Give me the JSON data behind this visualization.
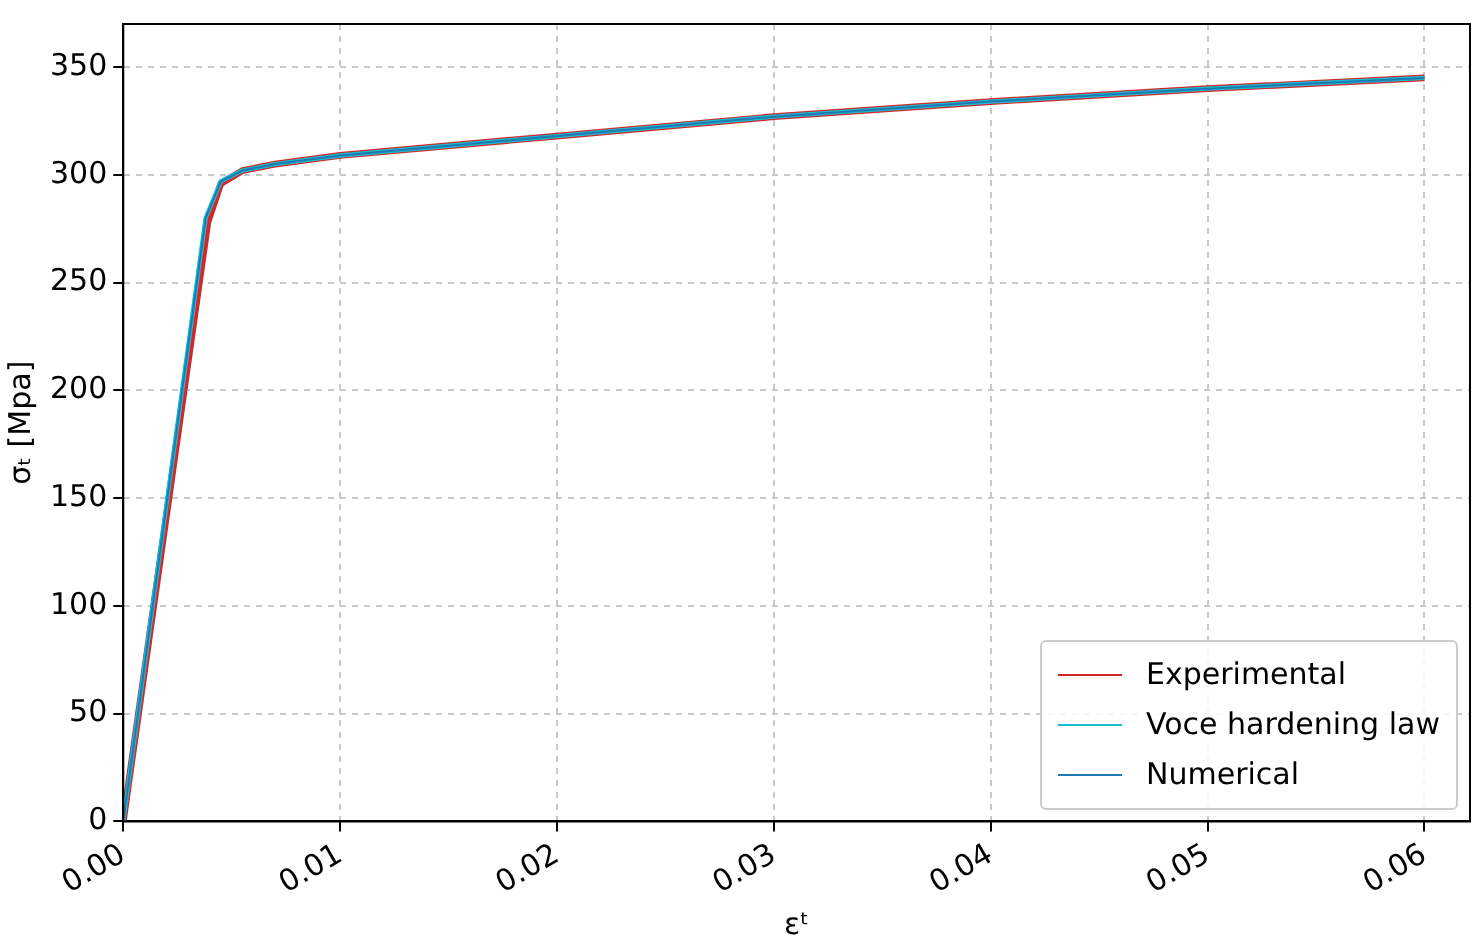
{
  "chart_data": {
    "type": "line",
    "xlabel": "εᵗ",
    "ylabel": "σₜ [Mpa]",
    "xlim": [
      0,
      0.0621
    ],
    "ylim": [
      0,
      370
    ],
    "xticks": [
      {
        "value": 0,
        "label": "0.00"
      },
      {
        "value": 0.01,
        "label": "0.01"
      },
      {
        "value": 0.02,
        "label": "0.02"
      },
      {
        "value": 0.03,
        "label": "0.03"
      },
      {
        "value": 0.04,
        "label": "0.04"
      },
      {
        "value": 0.05,
        "label": "0.05"
      },
      {
        "value": 0.06,
        "label": "0.06"
      }
    ],
    "yticks": [
      0,
      50,
      100,
      150,
      200,
      250,
      300,
      350
    ],
    "grid": true,
    "legend": "bottom right",
    "marker": "none",
    "line_style": "solid",
    "series": [
      {
        "name": "Experimental",
        "color": "#d62728",
        "x": [
          0,
          0.0039,
          0.0045,
          0.0055,
          0.007,
          0.01,
          0.02,
          0.03,
          0.04,
          0.05,
          0.06
        ],
        "values": [
          0,
          278,
          296,
          302,
          305,
          309,
          318,
          327,
          334,
          340,
          345
        ]
      },
      {
        "name": "Voce hardening law",
        "color": "#17becf",
        "x": [
          0,
          0.0038,
          0.0045,
          0.0055,
          0.007,
          0.01,
          0.02,
          0.03,
          0.04,
          0.05,
          0.06
        ],
        "values": [
          0,
          280,
          297,
          302,
          305,
          309,
          318,
          327,
          334,
          340,
          345
        ]
      },
      {
        "name": "Numerical",
        "color": "#1f77b4",
        "x": [
          0,
          0.0038,
          0.0045,
          0.0055,
          0.007,
          0.01,
          0.02,
          0.03,
          0.04,
          0.05,
          0.06
        ],
        "values": [
          0,
          280,
          297,
          302,
          305,
          309,
          318,
          327,
          334,
          340,
          345
        ]
      }
    ]
  }
}
